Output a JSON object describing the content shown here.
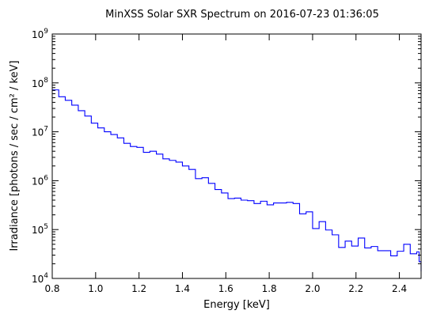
{
  "chart_data": {
    "type": "line",
    "step": "post",
    "title": "MinXSS Solar SXR Spectrum on 2016-07-23 01:36:05",
    "xlabel": "Energy [keV]",
    "ylabel": "Irradiance [photons / sec / cm² / keV]",
    "xlim": [
      0.8,
      2.5
    ],
    "ylim": [
      10000,
      1000000000
    ],
    "yscale": "log",
    "grid": false,
    "legend": "none",
    "line_color": "#0000ff",
    "x_ticks": [
      {
        "value": 0.8,
        "label": "0.8"
      },
      {
        "value": 1.0,
        "label": "1.0"
      },
      {
        "value": 1.2,
        "label": "1.2"
      },
      {
        "value": 1.4,
        "label": "1.4"
      },
      {
        "value": 1.6,
        "label": "1.6"
      },
      {
        "value": 1.8,
        "label": "1.8"
      },
      {
        "value": 2.0,
        "label": "2.0"
      },
      {
        "value": 2.2,
        "label": "2.2"
      },
      {
        "value": 2.4,
        "label": "2.4"
      }
    ],
    "y_ticks": [
      {
        "value": 10000,
        "base": "10",
        "exp": "4"
      },
      {
        "value": 100000,
        "base": "10",
        "exp": "5"
      },
      {
        "value": 1000000,
        "base": "10",
        "exp": "6"
      },
      {
        "value": 10000000,
        "base": "10",
        "exp": "7"
      },
      {
        "value": 100000000,
        "base": "10",
        "exp": "8"
      },
      {
        "value": 1000000000,
        "base": "10",
        "exp": "9"
      }
    ],
    "x": [
      0.8,
      0.83,
      0.86,
      0.89,
      0.92,
      0.95,
      0.98,
      1.01,
      1.04,
      1.07,
      1.1,
      1.13,
      1.16,
      1.19,
      1.22,
      1.25,
      1.28,
      1.31,
      1.34,
      1.37,
      1.4,
      1.43,
      1.46,
      1.49,
      1.52,
      1.55,
      1.58,
      1.61,
      1.64,
      1.67,
      1.7,
      1.73,
      1.76,
      1.79,
      1.82,
      1.85,
      1.88,
      1.91,
      1.94,
      1.97,
      2.0,
      2.03,
      2.06,
      2.09,
      2.12,
      2.15,
      2.18,
      2.21,
      2.24,
      2.27,
      2.3,
      2.33,
      2.36,
      2.39,
      2.42,
      2.45,
      2.48
    ],
    "y": [
      72000000,
      52000000,
      44000000,
      35000000,
      27000000,
      21000000,
      15000000,
      12000000,
      10000000,
      8800000,
      7500000,
      5800000,
      5000000,
      4800000,
      3800000,
      4000000,
      3500000,
      2800000,
      2600000,
      2400000,
      2000000,
      1700000,
      1100000,
      1150000,
      880000,
      660000,
      560000,
      430000,
      440000,
      400000,
      390000,
      340000,
      380000,
      320000,
      350000,
      350000,
      360000,
      340000,
      210000,
      230000,
      105000,
      145000,
      98000,
      78000,
      43000,
      58000,
      46000,
      67000,
      42000,
      45000,
      37000,
      37000,
      29000,
      36000,
      50000,
      32000,
      35000
    ],
    "y_last": 22000,
    "y_end": 14000
  }
}
